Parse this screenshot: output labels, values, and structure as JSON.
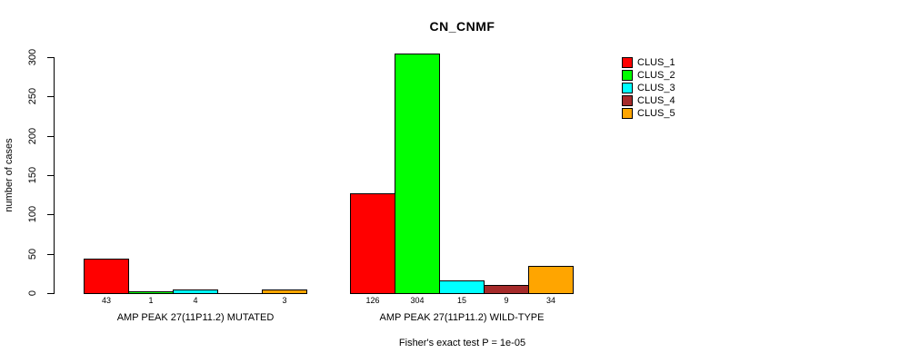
{
  "chart_data": {
    "type": "bar",
    "title": "CN_CNMF",
    "ylabel": "number of cases",
    "ylim": [
      0,
      300
    ],
    "yticks": [
      0,
      50,
      100,
      150,
      200,
      250,
      300
    ],
    "grid": false,
    "legend_position": "top-right",
    "categories": [
      "AMP PEAK 27(11P11.2) MUTATED",
      "AMP PEAK 27(11P11.2) WILD-TYPE"
    ],
    "series": [
      {
        "name": "CLUS_1",
        "color": "#ff0000",
        "values": [
          43,
          126
        ]
      },
      {
        "name": "CLUS_2",
        "color": "#00ff00",
        "values": [
          1,
          304
        ]
      },
      {
        "name": "CLUS_3",
        "color": "#00ffff",
        "values": [
          4,
          15
        ]
      },
      {
        "name": "CLUS_4",
        "color": "#a52a2a",
        "values": [
          0,
          9
        ]
      },
      {
        "name": "CLUS_5",
        "color": "#ffa500",
        "values": [
          3,
          34
        ]
      }
    ],
    "bar_value_labels": [
      [
        "43",
        "1",
        "4",
        "",
        "3"
      ],
      [
        "126",
        "304",
        "15",
        "9",
        "34"
      ]
    ],
    "annotation": "Fisher's exact test P = 1e-05"
  }
}
